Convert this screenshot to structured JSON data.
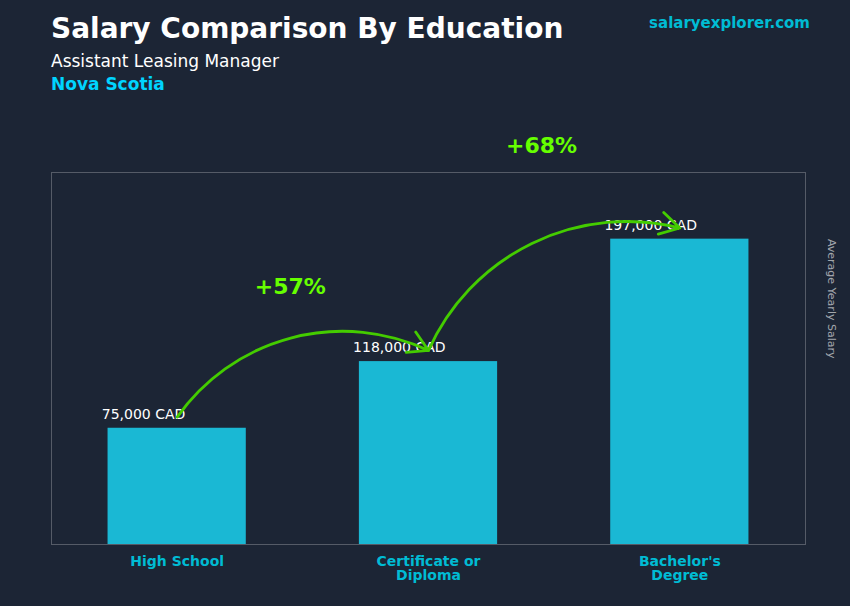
{
  "chart_data": {
    "type": "bar",
    "title": "Salary Comparison By Education",
    "subtitle": [
      "Assistant Leasing Manager",
      "Nova Scotia"
    ],
    "source": "salaryexplorer.com",
    "ylabel": "Average Yearly Salary",
    "categories": [
      "High School",
      "Certificate or\nDiploma",
      "Bachelor's\nDegree"
    ],
    "values": [
      75000,
      118000,
      197000
    ],
    "value_labels": [
      "75,000 CAD",
      "118,000 CAD",
      "197,000 CAD"
    ],
    "data_labels": true,
    "annotations": [
      "+57%",
      "+68%"
    ],
    "color": "#1ab8d4",
    "ylim": [
      0,
      240000
    ],
    "yticks": [],
    "tick_labels": "x",
    "grid": false
  }
}
